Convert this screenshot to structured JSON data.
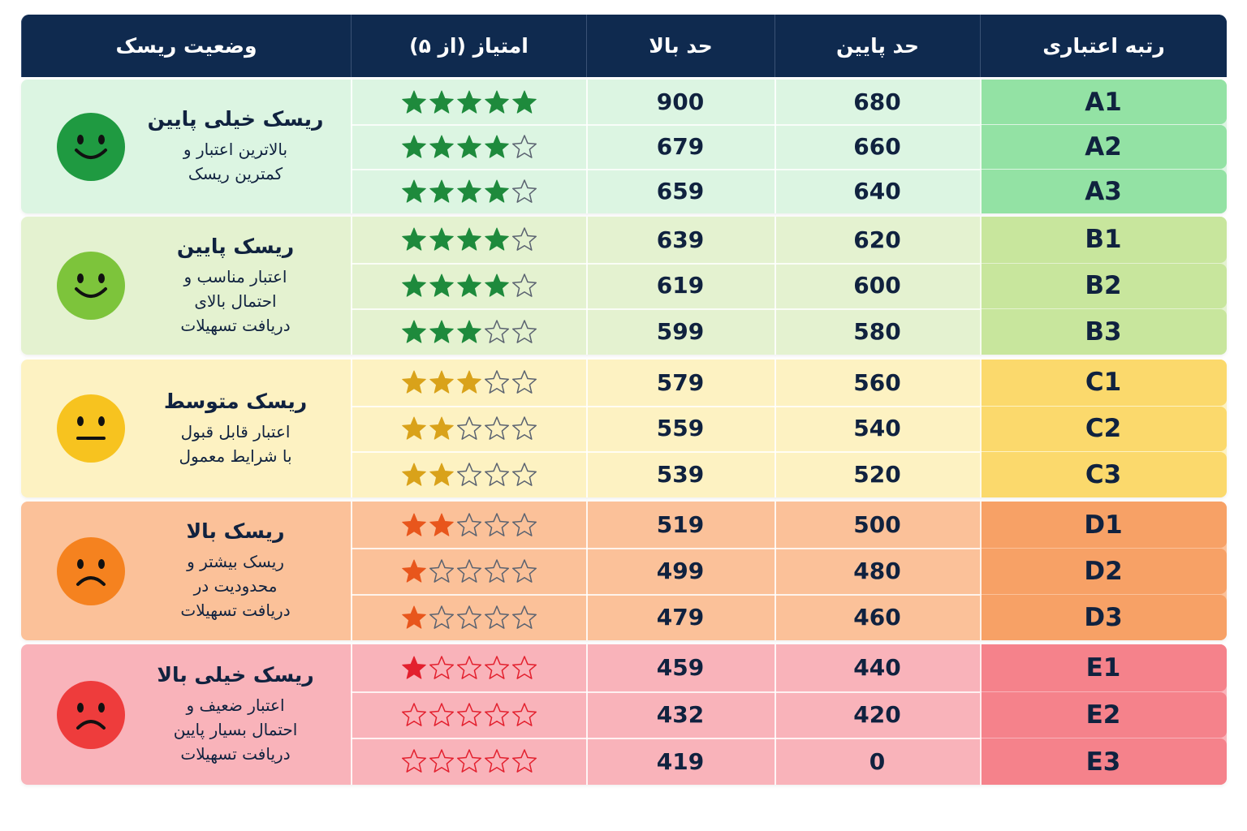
{
  "table": {
    "header": [
      "رتبه اعتباری",
      "حد پایین",
      "حد بالا",
      "امتیاز (از ۵)",
      "وضعیت ریسک"
    ],
    "groups": [
      {
        "title": "ریسک خیلی پایین",
        "description": [
          "بالاترین اعتبار و",
          "کمترین ریسک"
        ],
        "rows": [
          {
            "grade": "A1",
            "lower": 680,
            "upper": 900,
            "stars": 5
          },
          {
            "grade": "A2",
            "lower": 660,
            "upper": 679,
            "stars": 4
          },
          {
            "grade": "A3",
            "lower": 640,
            "upper": 659,
            "stars": 4
          }
        ]
      },
      {
        "title": "ریسک پایین",
        "description": [
          "اعتبار مناسب و",
          "احتمال بالای",
          "دریافت تسهیلات"
        ],
        "rows": [
          {
            "grade": "B1",
            "lower": 620,
            "upper": 639,
            "stars": 4
          },
          {
            "grade": "B2",
            "lower": 600,
            "upper": 619,
            "stars": 4
          },
          {
            "grade": "B3",
            "lower": 580,
            "upper": 599,
            "stars": 3
          }
        ]
      },
      {
        "title": "ریسک متوسط",
        "description": [
          "اعتبار قابل قبول",
          "با شرایط معمول"
        ],
        "rows": [
          {
            "grade": "C1",
            "lower": 560,
            "upper": 579,
            "stars": 3
          },
          {
            "grade": "C2",
            "lower": 540,
            "upper": 559,
            "stars": 2
          },
          {
            "grade": "C3",
            "lower": 520,
            "upper": 539,
            "stars": 2
          }
        ]
      },
      {
        "title": "ریسک بالا",
        "description": [
          "ریسک بیشتر و",
          "محدودیت در",
          "دریافت تسهیلات"
        ],
        "rows": [
          {
            "grade": "D1",
            "lower": 500,
            "upper": 519,
            "stars": 2
          },
          {
            "grade": "D2",
            "lower": 480,
            "upper": 499,
            "stars": 1
          },
          {
            "grade": "D3",
            "lower": 460,
            "upper": 479,
            "stars": 1
          }
        ]
      },
      {
        "title": "ریسک خیلی بالا",
        "description": [
          "اعتبار ضعیف و",
          "احتمال بسیار پایین",
          "دریافت تسهیلات"
        ],
        "rows": [
          {
            "grade": "E1",
            "lower": 440,
            "upper": 459,
            "stars": 1
          },
          {
            "grade": "E2",
            "lower": 420,
            "upper": 432,
            "stars": 0
          },
          {
            "grade": "E3",
            "lower": 0,
            "upper": 419,
            "stars": 0
          }
        ]
      }
    ]
  }
}
